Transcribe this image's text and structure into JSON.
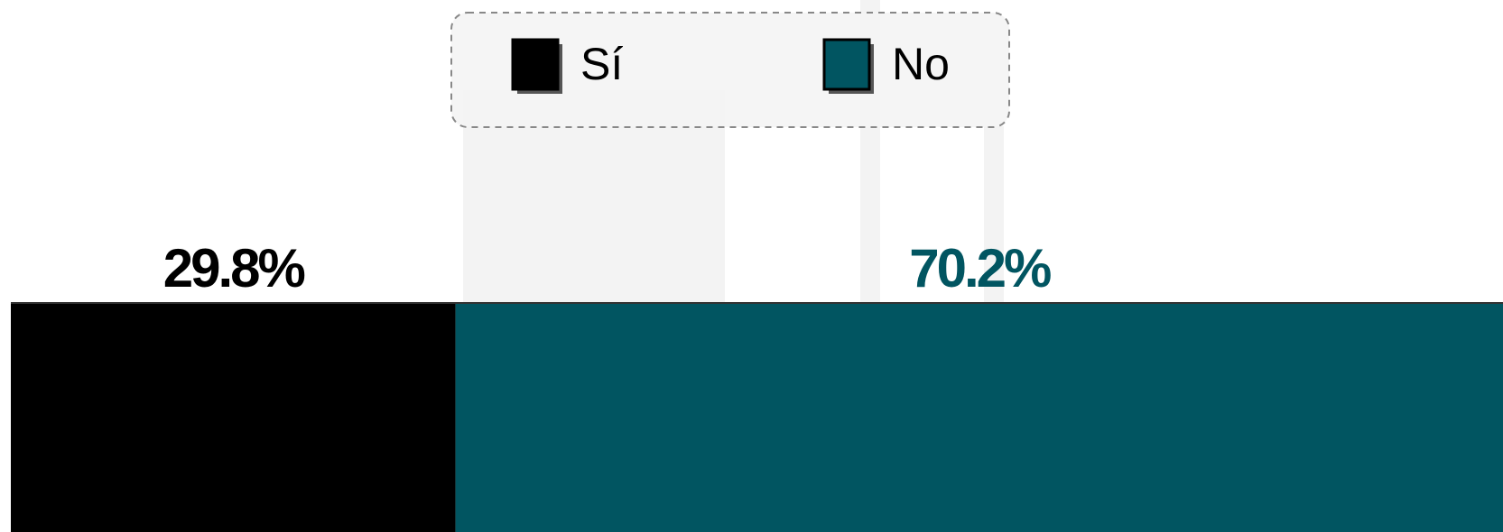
{
  "chart_data": {
    "type": "bar",
    "orientation": "horizontal",
    "stacked": true,
    "categories": [
      null
    ],
    "series": [
      {
        "name": "Sí",
        "color": "#000000",
        "values": [
          29.8
        ],
        "value_labels": [
          "29.8%"
        ]
      },
      {
        "name": "No",
        "color": "#015561",
        "values": [
          70.2
        ],
        "value_labels": [
          "70.2%"
        ]
      }
    ],
    "legend": "top"
  }
}
